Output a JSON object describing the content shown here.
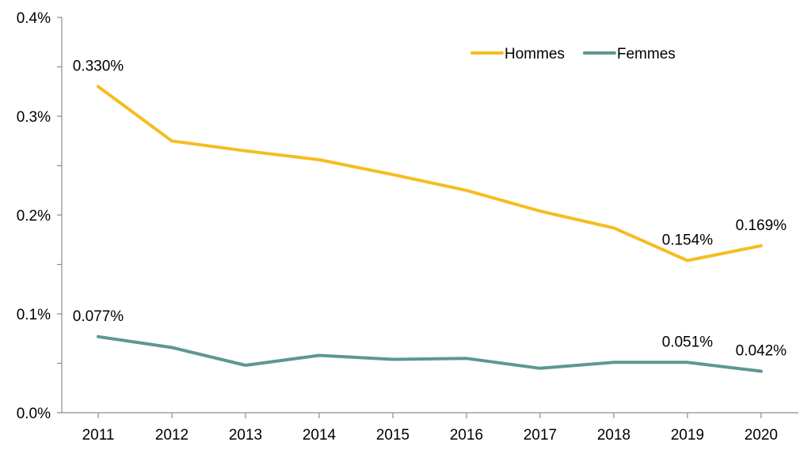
{
  "chart_data": {
    "type": "line",
    "title": "",
    "xlabel": "",
    "ylabel": "",
    "categories": [
      "2011",
      "2012",
      "2013",
      "2014",
      "2015",
      "2016",
      "2017",
      "2018",
      "2019",
      "2020"
    ],
    "ylim": [
      0,
      0.4
    ],
    "yticks": [
      0,
      0.1,
      0.2,
      0.3,
      0.4
    ],
    "ytick_labels": [
      "0.0%",
      "0.1%",
      "0.2%",
      "0.3%",
      "0.4%"
    ],
    "grid": false,
    "legend_position": "top-right",
    "series": [
      {
        "name": "Hommes",
        "color": "#F5BD1F",
        "values": [
          0.33,
          0.275,
          0.265,
          0.256,
          0.241,
          0.225,
          0.204,
          0.187,
          0.154,
          0.169
        ],
        "labels": [
          {
            "index": 0,
            "text": "0.330%"
          },
          {
            "index": 8,
            "text": "0.154%"
          },
          {
            "index": 9,
            "text": "0.169%"
          }
        ]
      },
      {
        "name": "Femmes",
        "color": "#5C9891",
        "values": [
          0.077,
          0.066,
          0.048,
          0.058,
          0.054,
          0.055,
          0.045,
          0.051,
          0.051,
          0.042
        ],
        "labels": [
          {
            "index": 0,
            "text": "0.077%"
          },
          {
            "index": 8,
            "text": "0.051%"
          },
          {
            "index": 9,
            "text": "0.042%"
          }
        ]
      }
    ]
  }
}
